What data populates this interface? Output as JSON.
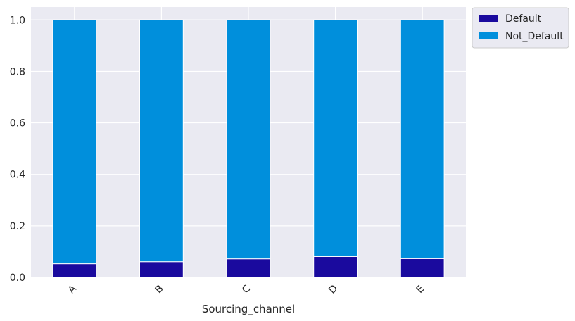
{
  "chart_data": {
    "type": "bar",
    "stacked": true,
    "categories": [
      "A",
      "B",
      "C",
      "D",
      "E"
    ],
    "series": [
      {
        "name": "Default",
        "values": [
          0.053,
          0.061,
          0.072,
          0.081,
          0.073
        ],
        "color": "#1a0a9e"
      },
      {
        "name": "Not_Default",
        "values": [
          0.947,
          0.939,
          0.928,
          0.919,
          0.927
        ],
        "color": "#008fdc"
      }
    ],
    "xlabel": "Sourcing_channel",
    "ylabel": "",
    "ylim": [
      0,
      1.05
    ],
    "yticks": [
      0.0,
      0.2,
      0.4,
      0.6,
      0.8,
      1.0
    ],
    "ytick_labels": [
      "0.0",
      "0.2",
      "0.4",
      "0.6",
      "0.8",
      "1.0"
    ],
    "grid": true,
    "legend_position": "outside-top-right",
    "background_color": "#eaeaf2",
    "tick_label_rotation": -45
  }
}
